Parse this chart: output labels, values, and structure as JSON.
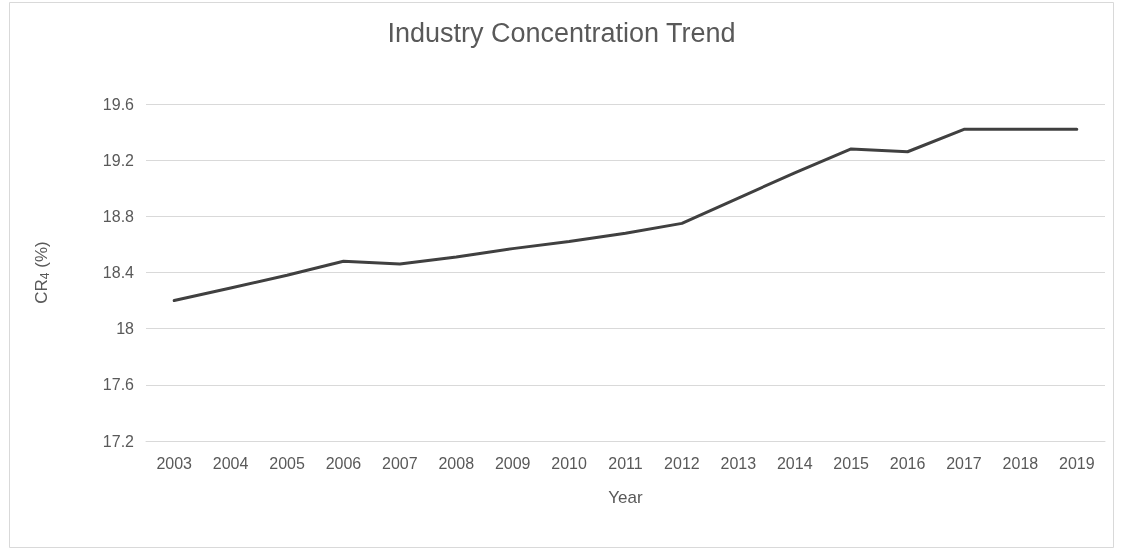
{
  "chart_data": {
    "type": "line",
    "title": "Industry Concentration Trend",
    "xlabel": "Year",
    "ylabel": "CR$_{4}$ (%)",
    "categories": [
      "2003",
      "2004",
      "2005",
      "2006",
      "2007",
      "2008",
      "2009",
      "2010",
      "2011",
      "2012",
      "2013",
      "2014",
      "2015",
      "2016",
      "2017",
      "2018",
      "2019"
    ],
    "series": [
      {
        "color": "#404040",
        "values": [
          18.2,
          18.29,
          18.38,
          18.48,
          18.46,
          18.51,
          18.57,
          18.62,
          18.68,
          18.75,
          18.93,
          19.11,
          19.28,
          19.26,
          19.42,
          19.42,
          19.42
        ]
      }
    ],
    "ylim": [
      17.2,
      19.6
    ],
    "yticks": [
      17.2,
      17.6,
      18,
      18.4,
      18.8,
      19.2,
      19.6
    ],
    "grid": "y",
    "marker": "none",
    "line_style": "solid"
  }
}
